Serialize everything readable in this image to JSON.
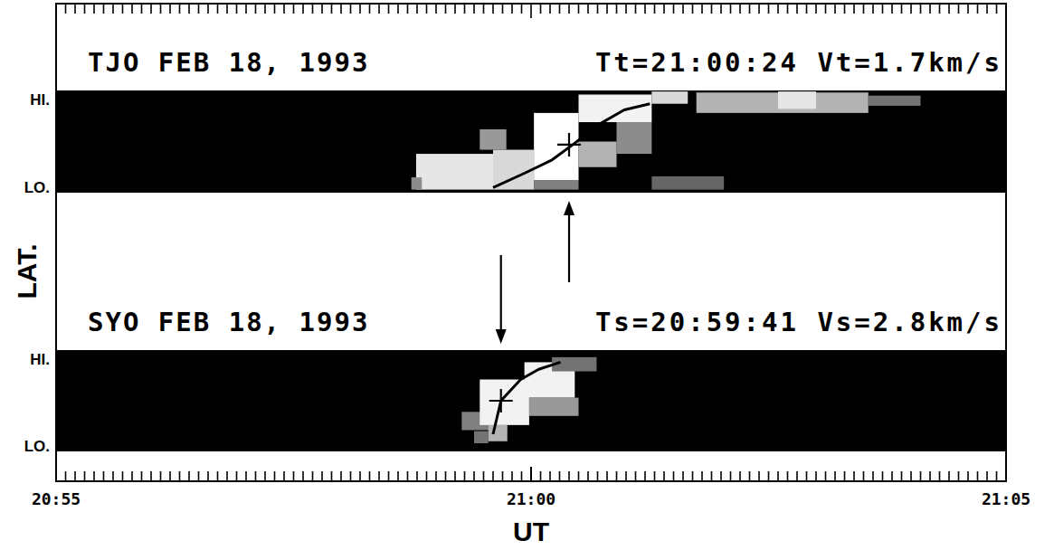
{
  "chart_data": {
    "type": "heatmap",
    "x_label": "UT",
    "y_label": "LAT.",
    "xlim": [
      1255,
      1265
    ],
    "xticks": [
      {
        "value": 1255,
        "label": "20:55"
      },
      {
        "value": 1260,
        "label": "21:00"
      },
      {
        "value": 1265,
        "label": "21:05"
      }
    ],
    "x_minor_step": 0.1,
    "panels": [
      {
        "title": "TJO FEB 18, 1993",
        "info": "Tt=21:00:24 Vt=1.7km/s",
        "ylim": [
          0,
          1
        ],
        "yticks": [
          {
            "value": 1,
            "label": "HI."
          },
          {
            "value": 0,
            "label": "LO."
          }
        ],
        "cells": [
          [
            1258.79,
            1259.6,
            0.03,
            0.38,
            0.9
          ],
          [
            1258.74,
            1258.85,
            0.03,
            0.15,
            0.55
          ],
          [
            1259.6,
            1260.03,
            0.03,
            0.42,
            0.85
          ],
          [
            1259.46,
            1259.74,
            0.42,
            0.62,
            0.6
          ],
          [
            1260.03,
            1260.5,
            0.12,
            0.78,
            1
          ],
          [
            1260.03,
            1260.5,
            0.03,
            0.12,
            0.5
          ],
          [
            1260.5,
            1261.27,
            0.69,
            0.96,
            0.95
          ],
          [
            1260.9,
            1261.27,
            0.38,
            0.69,
            0.55
          ],
          [
            1260.5,
            1260.9,
            0.25,
            0.5,
            0.7
          ],
          [
            1261.27,
            1262.03,
            0.03,
            0.16,
            0.4
          ],
          [
            1261.27,
            1261.65,
            0.87,
            0.99,
            0.85
          ],
          [
            1261.74,
            1263.55,
            0.78,
            0.98,
            0.7
          ],
          [
            1262.6,
            1263,
            0.82,
            0.99,
            0.9
          ],
          [
            1263.55,
            1264.1,
            0.85,
            0.95,
            0.45
          ]
        ],
        "curve": {
          "x": [
            1259.6,
            1259.93,
            1260.22,
            1260.44,
            1260.7,
            1260.98,
            1261.25
          ],
          "y": [
            0.05,
            0.19,
            0.32,
            0.47,
            0.66,
            0.81,
            0.87
          ]
        },
        "cross_point": {
          "x": 1260.4,
          "y": 0.47
        },
        "arrow": "up"
      },
      {
        "title": "SYO FEB 18, 1993",
        "info": "Ts=20:59:41 Vs=2.8km/s",
        "ylim": [
          0,
          1
        ],
        "yticks": [
          {
            "value": 1,
            "label": "HI."
          },
          {
            "value": 0,
            "label": "LO."
          }
        ],
        "cells": [
          [
            1259.27,
            1259.6,
            0.21,
            0.39,
            0.5
          ],
          [
            1259.4,
            1259.55,
            0.08,
            0.2,
            0.45
          ],
          [
            1259.46,
            1259.98,
            0.26,
            0.71,
            0.95
          ],
          [
            1259.93,
            1260.46,
            0.53,
            0.88,
            0.95
          ],
          [
            1259.98,
            1260.5,
            0.35,
            0.53,
            0.6
          ],
          [
            1260.22,
            1260.69,
            0.79,
            0.93,
            0.45
          ],
          [
            1259.55,
            1259.75,
            0.1,
            0.26,
            0.7
          ]
        ],
        "curve": {
          "x": [
            1259.6,
            1259.683,
            1259.89,
            1260.08,
            1260.31
          ],
          "y": [
            0.17,
            0.5,
            0.71,
            0.81,
            0.88
          ]
        },
        "cross_point": {
          "x": 1259.683,
          "y": 0.5
        },
        "arrow": "down"
      }
    ]
  }
}
